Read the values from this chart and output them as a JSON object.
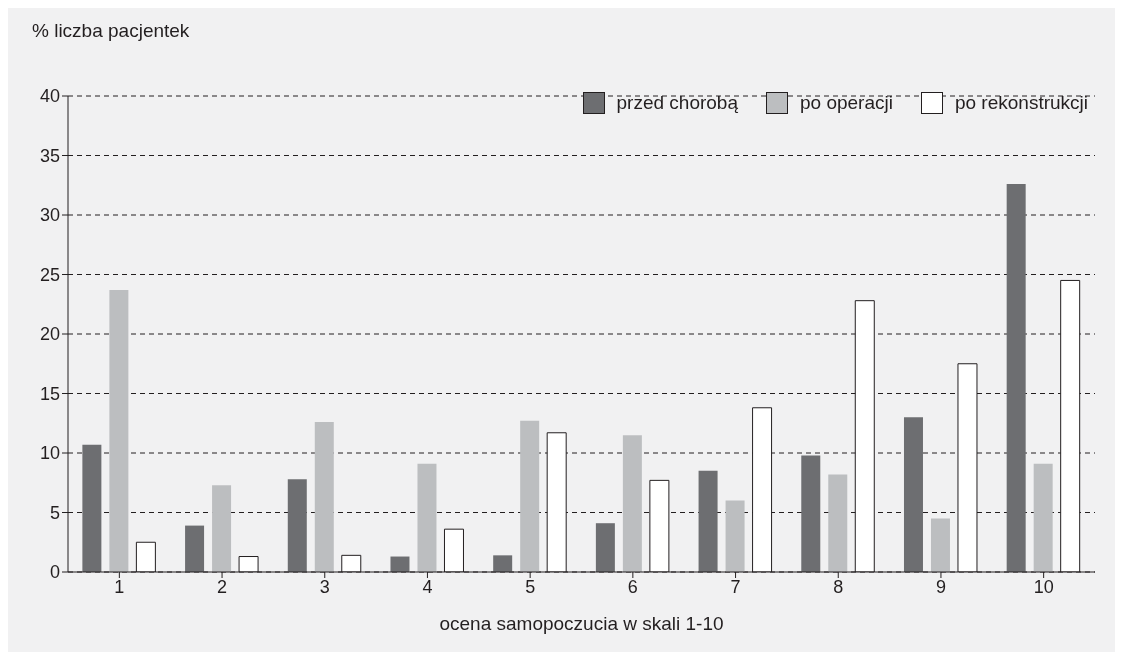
{
  "chart_data": {
    "type": "bar",
    "ylabel": "% liczba pacjentek",
    "xlabel": "ocena samopoczucia w skali 1-10",
    "categories": [
      "1",
      "2",
      "3",
      "4",
      "5",
      "6",
      "7",
      "8",
      "9",
      "10"
    ],
    "series": [
      {
        "name": "przed chorobą",
        "color": "#6d6e71",
        "values": [
          10.7,
          3.9,
          7.8,
          1.3,
          1.4,
          4.1,
          8.5,
          9.8,
          13.0,
          32.6
        ]
      },
      {
        "name": "po operacji",
        "color": "#bcbec0",
        "values": [
          23.7,
          7.3,
          12.6,
          9.1,
          12.7,
          11.5,
          6.0,
          8.2,
          4.5,
          9.1
        ]
      },
      {
        "name": "po rekonstrukcji",
        "color": "#ffffff",
        "values": [
          2.5,
          1.3,
          1.4,
          3.6,
          11.7,
          7.7,
          13.8,
          22.8,
          17.5,
          24.5
        ]
      }
    ],
    "ylim": [
      0,
      40
    ],
    "yticks": [
      0,
      5,
      10,
      15,
      20,
      25,
      30,
      35,
      40
    ],
    "grid": "y",
    "legend": "top right"
  }
}
